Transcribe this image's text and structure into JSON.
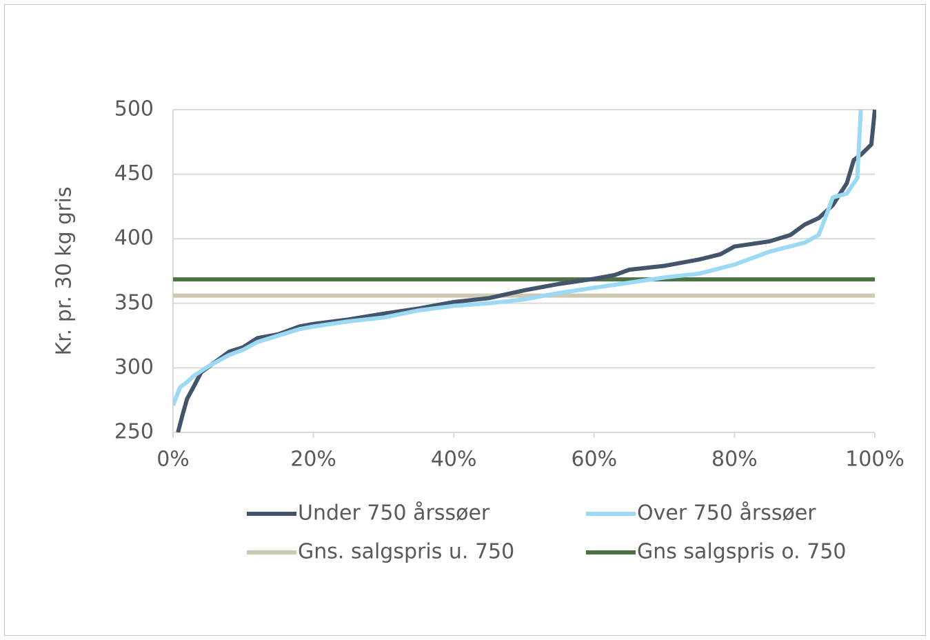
{
  "chart_data": {
    "type": "line",
    "y_label": "Kr. pr. 30 kg gris",
    "xlim": [
      0,
      100
    ],
    "ylim": [
      250,
      500
    ],
    "xticks": [
      {
        "value": 0,
        "label": "0%"
      },
      {
        "value": 20,
        "label": "20%"
      },
      {
        "value": 40,
        "label": "40%"
      },
      {
        "value": 60,
        "label": "60%"
      },
      {
        "value": 80,
        "label": "80%"
      },
      {
        "value": 100,
        "label": "100%"
      }
    ],
    "yticks": [
      250,
      300,
      350,
      400,
      450,
      500
    ],
    "grid": true,
    "legend": "bottom",
    "series": [
      {
        "name": "Under 750 årssøer",
        "color": "#44546a",
        "x": [
          0.7,
          1.4,
          2,
          3,
          4,
          6,
          8,
          10,
          12,
          15,
          18,
          20,
          25,
          30,
          35,
          40,
          45,
          50,
          55,
          60,
          63,
          65,
          70,
          75,
          78,
          80,
          85,
          88,
          90,
          92,
          94,
          96,
          97,
          98,
          99.5,
          100
        ],
        "values": [
          250,
          264.5,
          276,
          286,
          296.5,
          304.5,
          312.5,
          316,
          323,
          326,
          332,
          334,
          337.5,
          342,
          346,
          351,
          354,
          360,
          365,
          369,
          372,
          376,
          379,
          384,
          388,
          394,
          398,
          403,
          411,
          416,
          426,
          443,
          461,
          465,
          473,
          500
        ]
      },
      {
        "name": "Over 750 årssøer",
        "color": "#9dd9f3",
        "x": [
          0,
          1,
          2,
          3,
          5,
          8,
          10,
          12,
          15,
          18,
          20,
          25,
          30,
          35,
          40,
          45,
          50,
          55,
          60,
          65,
          70,
          75,
          80,
          85,
          90,
          92,
          93,
          94,
          96,
          97.5,
          98
        ],
        "values": [
          271,
          285,
          289,
          294,
          301,
          310,
          314,
          320,
          325,
          330,
          332,
          336,
          339,
          344.5,
          348,
          350,
          353,
          358,
          362,
          366,
          370,
          373,
          380,
          390,
          397,
          403,
          417,
          432,
          435,
          447,
          500
        ]
      },
      {
        "name": "Gns. salgspris u. 750",
        "color": "#cdc9b2",
        "x": [
          0,
          100
        ],
        "values": [
          356,
          356
        ]
      },
      {
        "name": "Gns salgspris o. 750",
        "color": "#4e7144",
        "x": [
          0,
          100
        ],
        "values": [
          368.5,
          368.5
        ]
      }
    ]
  }
}
